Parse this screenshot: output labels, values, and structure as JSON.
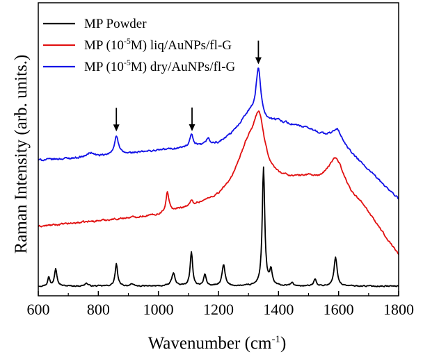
{
  "chart_data": {
    "type": "line",
    "xlabel": "Wavenumber (cm",
    "xlabel_sup": "-1",
    "xlabel_end": ")",
    "ylabel": "Raman Intensity (arb. units.)",
    "xlim": [
      600,
      1800
    ],
    "ylim": [
      0,
      100
    ],
    "x_ticks": [
      600,
      800,
      1000,
      1200,
      1400,
      1600,
      1800
    ],
    "x_tick_labels": [
      "600",
      "800",
      "1000",
      "1200",
      "1400",
      "1600",
      "1800"
    ],
    "y_tick_labels": false,
    "grid": false,
    "legend_position": "top-left",
    "annotations": {
      "type": "down-arrow",
      "x": [
        860,
        1112,
        1333
      ]
    },
    "series": [
      {
        "name": "MP Powder",
        "label_parts": [
          "MP Powder"
        ],
        "color": "#000000",
        "baseline": 3.3,
        "peaks": [
          {
            "x": 635,
            "h": 3.0,
            "w": 4
          },
          {
            "x": 658,
            "h": 6.2,
            "w": 5
          },
          {
            "x": 760,
            "h": 1.0,
            "w": 6
          },
          {
            "x": 860,
            "h": 7.5,
            "w": 5
          },
          {
            "x": 910,
            "h": 0.8,
            "w": 5
          },
          {
            "x": 1050,
            "h": 4.3,
            "w": 7
          },
          {
            "x": 1110,
            "h": 11.4,
            "w": 5
          },
          {
            "x": 1155,
            "h": 4.0,
            "w": 5
          },
          {
            "x": 1217,
            "h": 7.2,
            "w": 6
          },
          {
            "x": 1350,
            "h": 40.5,
            "w": 5
          },
          {
            "x": 1375,
            "h": 5.0,
            "w": 5
          },
          {
            "x": 1445,
            "h": 1.0,
            "w": 6
          },
          {
            "x": 1522,
            "h": 2.5,
            "w": 5
          },
          {
            "x": 1590,
            "h": 10.0,
            "w": 6
          }
        ],
        "noise": 0.35
      },
      {
        "name": "MP (10-5M) liq/AuNPs/fl-G",
        "label_parts": [
          "MP (10",
          "-5",
          "M) liq/AuNPs/fl-G"
        ],
        "color": "#e11111",
        "baseline_points": [
          [
            600,
            23.6
          ],
          [
            1000,
            27.4
          ],
          [
            1200,
            32.6
          ],
          [
            1290,
            37.8
          ],
          [
            1400,
            38.5
          ],
          [
            1500,
            39.2
          ],
          [
            1680,
            30.0
          ],
          [
            1800,
            13.8
          ]
        ],
        "peaks": [
          {
            "x": 1030,
            "h": 7.0,
            "w": 6
          },
          {
            "x": 1110,
            "h": 1.4,
            "w": 5
          },
          {
            "x": 1300,
            "h": 12.0,
            "w": 45
          },
          {
            "x": 1335,
            "h": 17.0,
            "w": 22
          },
          {
            "x": 1592,
            "h": 12.0,
            "w": 35
          }
        ],
        "noise": 0.55
      },
      {
        "name": "MP (10-5M) dry/AuNPs/fl-G",
        "label_parts": [
          "MP (10",
          "-5",
          "M) dry/AuNPs/fl-G"
        ],
        "color": "#1212e6",
        "baseline_points": [
          [
            600,
            46.3
          ],
          [
            800,
            47.4
          ],
          [
            1000,
            49.6
          ],
          [
            1200,
            51.5
          ],
          [
            1300,
            56.0
          ],
          [
            1400,
            59.0
          ],
          [
            1500,
            56.8
          ],
          [
            1600,
            52.5
          ],
          [
            1800,
            33.0
          ]
        ],
        "peaks": [
          {
            "x": 775,
            "h": 1.5,
            "w": 15
          },
          {
            "x": 860,
            "h": 6.5,
            "w": 8
          },
          {
            "x": 1110,
            "h": 4.2,
            "w": 6
          },
          {
            "x": 1165,
            "h": 2.2,
            "w": 6
          },
          {
            "x": 1300,
            "h": 6.0,
            "w": 40
          },
          {
            "x": 1333,
            "h": 17.0,
            "w": 10
          },
          {
            "x": 1595,
            "h": 4.0,
            "w": 20
          }
        ],
        "noise": 0.6
      }
    ]
  }
}
